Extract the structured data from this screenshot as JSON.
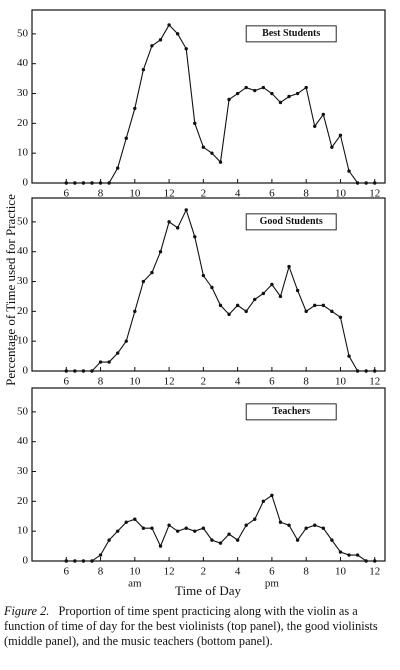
{
  "figure": {
    "ylabel": "Percentage of Time used for Practice",
    "xlabel": "Time of Day",
    "caption_label": "Figure 2.",
    "caption": "Proportion of time spent practicing along with the violin as a function of time of day for the best violinists (top panel), the good violinists (middle panel), and the music teachers (bottom panel)."
  },
  "chart_data": [
    {
      "type": "line",
      "x": [
        6,
        6.5,
        7,
        7.5,
        8,
        8.5,
        9,
        9.5,
        10,
        10.5,
        11,
        11.5,
        12,
        12.5,
        13,
        13.5,
        14,
        14.5,
        15,
        15.5,
        16,
        16.5,
        17,
        17.5,
        18,
        18.5,
        19,
        19.5,
        20,
        20.5,
        21,
        21.5,
        22,
        22.5,
        23,
        23.5,
        24
      ],
      "series": [
        {
          "name": "Best Students",
          "color": "#111111",
          "values": [
            0,
            0,
            0,
            0,
            0,
            0,
            5,
            15,
            25,
            38,
            46,
            48,
            53,
            50,
            45,
            20,
            12,
            10,
            7,
            28,
            30,
            32,
            31,
            32,
            30,
            27,
            29,
            30,
            32,
            19,
            23,
            12,
            16,
            4,
            0,
            0,
            0
          ]
        }
      ],
      "xlim": [
        4,
        24.6
      ],
      "xticks": [
        6,
        8,
        10,
        12,
        {
          "value": 14,
          "label": "2"
        },
        {
          "value": 16,
          "label": "4"
        },
        {
          "value": 18,
          "label": "6"
        },
        {
          "value": 20,
          "label": "8"
        },
        {
          "value": 22,
          "label": "10"
        },
        {
          "value": 24,
          "label": "12"
        }
      ],
      "ylim": [
        0,
        58
      ],
      "yticks": [
        0,
        10,
        20,
        30,
        40,
        50
      ]
    },
    {
      "type": "line",
      "x": [
        6,
        6.5,
        7,
        7.5,
        8,
        8.5,
        9,
        9.5,
        10,
        10.5,
        11,
        11.5,
        12,
        12.5,
        13,
        13.5,
        14,
        14.5,
        15,
        15.5,
        16,
        16.5,
        17,
        17.5,
        18,
        18.5,
        19,
        19.5,
        20,
        20.5,
        21,
        21.5,
        22,
        22.5,
        23,
        23.5,
        24
      ],
      "series": [
        {
          "name": "Good Students",
          "color": "#111111",
          "values": [
            0,
            0,
            0,
            0,
            3,
            3,
            6,
            10,
            20,
            30,
            33,
            40,
            50,
            48,
            54,
            45,
            32,
            28,
            22,
            19,
            22,
            20,
            24,
            26,
            29,
            25,
            35,
            27,
            20,
            22,
            22,
            20,
            18,
            5,
            0,
            0,
            0
          ]
        }
      ],
      "xlim": [
        4,
        24.6
      ],
      "xticks": [
        6,
        8,
        10,
        12,
        {
          "value": 14,
          "label": "2"
        },
        {
          "value": 16,
          "label": "4"
        },
        {
          "value": 18,
          "label": "6"
        },
        {
          "value": 20,
          "label": "8"
        },
        {
          "value": 22,
          "label": "10"
        },
        {
          "value": 24,
          "label": "12"
        }
      ],
      "ylim": [
        0,
        58
      ],
      "yticks": [
        0,
        10,
        20,
        30,
        40,
        50
      ]
    },
    {
      "type": "line",
      "x": [
        6,
        6.5,
        7,
        7.5,
        8,
        8.5,
        9,
        9.5,
        10,
        10.5,
        11,
        11.5,
        12,
        12.5,
        13,
        13.5,
        14,
        14.5,
        15,
        15.5,
        16,
        16.5,
        17,
        17.5,
        18,
        18.5,
        19,
        19.5,
        20,
        20.5,
        21,
        21.5,
        22,
        22.5,
        23,
        23.5,
        24
      ],
      "series": [
        {
          "name": "Teachers",
          "color": "#111111",
          "values": [
            0,
            0,
            0,
            0,
            2,
            7,
            10,
            13,
            14,
            11,
            11,
            5,
            12,
            10,
            11,
            10,
            11,
            7,
            6,
            9,
            7,
            12,
            14,
            20,
            22,
            13,
            12,
            7,
            11,
            12,
            11,
            7,
            3,
            2,
            2,
            0,
            0
          ]
        }
      ],
      "xlim": [
        4,
        24.6
      ],
      "xticks": [
        6,
        8,
        10,
        12,
        {
          "value": 14,
          "label": "2"
        },
        {
          "value": 16,
          "label": "4"
        },
        {
          "value": 18,
          "label": "6"
        },
        {
          "value": 20,
          "label": "8"
        },
        {
          "value": 22,
          "label": "10"
        },
        {
          "value": 24,
          "label": "12"
        }
      ],
      "ylim": [
        0,
        58
      ],
      "yticks": [
        0,
        10,
        20,
        30,
        40,
        50
      ],
      "annotations": [
        {
          "text": "am",
          "x": 10
        },
        {
          "text": "pm",
          "x": 18
        }
      ]
    }
  ]
}
